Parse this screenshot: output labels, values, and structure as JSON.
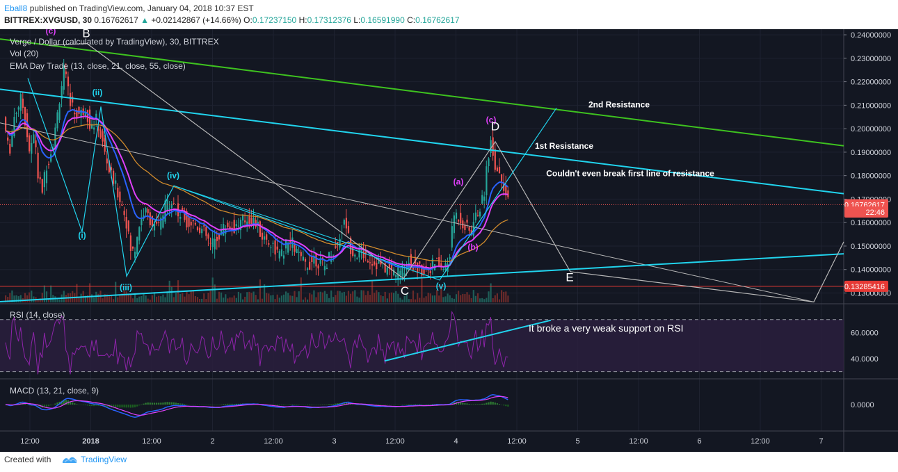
{
  "header": {
    "author": "Eball8",
    "published_text": "published on TradingView.com, January 04, 2018 10:37 EST",
    "symbol": "BITTREX:XVGUSD, 30",
    "last": "0.16762617",
    "change_arrow": "▲",
    "change": "+0.02142867 (+14.66%)",
    "o_label": "O:",
    "o_value": "0.17237150",
    "h_label": "H:",
    "h_value": "0.17312376",
    "l_label": "L:",
    "l_value": "0.16591990",
    "c_label": "C:",
    "c_value": "0.16762617"
  },
  "legend": {
    "title": "Verge / Dollar (calculated by TradingView), 30, BITTREX",
    "volume": "Vol (20)",
    "ema": "EMA Day Trade (13, close, 21, close, 55, close)",
    "rsi": "RSI (14, close)",
    "macd": "MACD (13, 21, close, 9)"
  },
  "footer": {
    "created_with": "Created with",
    "brand": "TradingView"
  },
  "colors": {
    "background": "#131722",
    "grid": "#1e2230",
    "up": "#26a69a",
    "down": "#ef5350",
    "ema13": "#2962ff",
    "ema21": "#e040fb",
    "ema55": "#d08a2c",
    "green_line": "#3ec21f",
    "cyan": "#21d4ee",
    "gray_line": "#b7b7b7",
    "rsi_line": "#8e24aa"
  },
  "chart_data": {
    "type": "candlestick",
    "title": "Verge / Dollar (calculated by TradingView), 30, BITTREX",
    "price_axis": [
      "0.24000000",
      "0.23000000",
      "0.22000000",
      "0.21000000",
      "0.20000000",
      "0.19000000",
      "0.18000000",
      "0.17000000",
      "0.16000000",
      "0.15000000",
      "0.14000000",
      "0.13000000"
    ],
    "price_range": [
      0.126,
      0.2415
    ],
    "rsi_axis": [
      "60.0000",
      "40.0000"
    ],
    "rsi_range": [
      25,
      80
    ],
    "rsi_bands": [
      70,
      30
    ],
    "macd_axis": [
      "0.0000"
    ],
    "time_axis": [
      "12:00",
      "2018",
      "12:00",
      "2",
      "12:00",
      "3",
      "12:00",
      "4",
      "12:00",
      "5",
      "12:00",
      "6",
      "12:00",
      "7"
    ],
    "price_labels": [
      {
        "text": "0.16762617",
        "value": 0.16762617,
        "color": "#ef5350"
      },
      {
        "text": "22:46",
        "value": 0.1645,
        "color": "#ef5350"
      },
      {
        "text": "0.13285416",
        "value": 0.13285416,
        "color": "#e53935"
      }
    ],
    "support_line": 0.13285416,
    "last_price": 0.16762617,
    "waypoints": [
      [
        0,
        0.196
      ],
      [
        8,
        0.205
      ],
      [
        16,
        0.189
      ],
      [
        23,
        0.205
      ],
      [
        28,
        0.209
      ],
      [
        34,
        0.213
      ],
      [
        40,
        0.202
      ],
      [
        46,
        0.189
      ],
      [
        53,
        0.199
      ],
      [
        58,
        0.178
      ],
      [
        64,
        0.174
      ],
      [
        70,
        0.185
      ],
      [
        76,
        0.19
      ],
      [
        82,
        0.198
      ],
      [
        88,
        0.212
      ],
      [
        95,
        0.225
      ],
      [
        102,
        0.214
      ],
      [
        110,
        0.207
      ],
      [
        118,
        0.206
      ],
      [
        126,
        0.209
      ],
      [
        134,
        0.2
      ],
      [
        142,
        0.204
      ],
      [
        150,
        0.194
      ],
      [
        160,
        0.182
      ],
      [
        168,
        0.176
      ],
      [
        176,
        0.17
      ],
      [
        184,
        0.162
      ],
      [
        190,
        0.149
      ],
      [
        196,
        0.147
      ],
      [
        202,
        0.158
      ],
      [
        210,
        0.165
      ],
      [
        218,
        0.162
      ],
      [
        226,
        0.157
      ],
      [
        234,
        0.16
      ],
      [
        242,
        0.168
      ],
      [
        250,
        0.17
      ],
      [
        258,
        0.164
      ],
      [
        266,
        0.163
      ],
      [
        274,
        0.16
      ],
      [
        282,
        0.16
      ],
      [
        290,
        0.158
      ],
      [
        298,
        0.155
      ],
      [
        306,
        0.15
      ],
      [
        314,
        0.153
      ],
      [
        322,
        0.157
      ],
      [
        330,
        0.159
      ],
      [
        340,
        0.158
      ],
      [
        350,
        0.16
      ],
      [
        360,
        0.162
      ],
      [
        370,
        0.16
      ],
      [
        380,
        0.154
      ],
      [
        390,
        0.152
      ],
      [
        398,
        0.149
      ],
      [
        406,
        0.145
      ],
      [
        414,
        0.15
      ],
      [
        422,
        0.152
      ],
      [
        430,
        0.147
      ],
      [
        438,
        0.143
      ],
      [
        446,
        0.142
      ],
      [
        454,
        0.145
      ],
      [
        462,
        0.143
      ],
      [
        470,
        0.141
      ],
      [
        478,
        0.147
      ],
      [
        486,
        0.149
      ],
      [
        494,
        0.157
      ],
      [
        500,
        0.161
      ],
      [
        506,
        0.15
      ],
      [
        514,
        0.147
      ],
      [
        522,
        0.147
      ],
      [
        530,
        0.146
      ],
      [
        540,
        0.143
      ],
      [
        550,
        0.142
      ],
      [
        560,
        0.14
      ],
      [
        570,
        0.139
      ],
      [
        580,
        0.139
      ],
      [
        590,
        0.144
      ],
      [
        600,
        0.141
      ],
      [
        610,
        0.14
      ],
      [
        620,
        0.141
      ],
      [
        630,
        0.143
      ],
      [
        640,
        0.14
      ],
      [
        648,
        0.143
      ],
      [
        656,
        0.164
      ],
      [
        664,
        0.162
      ],
      [
        672,
        0.158
      ],
      [
        680,
        0.156
      ],
      [
        686,
        0.162
      ],
      [
        692,
        0.166
      ],
      [
        698,
        0.17
      ],
      [
        704,
        0.188
      ],
      [
        710,
        0.195
      ],
      [
        716,
        0.182
      ],
      [
        722,
        0.182
      ],
      [
        726,
        0.178
      ],
      [
        731,
        0.17
      ],
      [
        733,
        0.168
      ]
    ],
    "overlays": {
      "green_trendline": {
        "x1": 0,
        "v1": 0.2382,
        "x2": 1213,
        "v2": 0.1927
      },
      "cyan_upper_trendline": {
        "x1": 0,
        "v1": 0.2168,
        "x2": 1213,
        "v2": 0.1723
      },
      "cyan_lower_trendline": {
        "x1": 0,
        "v1": 0.1263,
        "x2": 1213,
        "v2": 0.1467
      },
      "gray_descending_line": {
        "x1": 0,
        "v1": 0.2025,
        "x2": 1170,
        "v2": 0.1262
      },
      "abcde_pattern": [
        [
          70,
          0.2355
        ],
        [
          125,
          0.2363
        ],
        [
          580,
          0.1362
        ],
        [
          712,
          0.1945
        ],
        [
          820,
          0.1391
        ],
        [
          1170,
          0.1262
        ],
        [
          1213,
          0.1518
        ]
      ],
      "cyan_wave": [
        [
          40,
          0.2215
        ],
        [
          118,
          0.1561
        ],
        [
          145,
          0.2094
        ],
        [
          182,
          0.1371
        ],
        [
          250,
          0.1757
        ],
        [
          632,
          0.1355
        ],
        [
          800,
          0.2088
        ]
      ],
      "wave_iv_channel": [
        [
          250,
          0.1757
        ],
        [
          505,
          0.1507
        ]
      ]
    },
    "annotations": [
      {
        "text": "(c)",
        "color": "#e040fb",
        "x": 73,
        "v": 0.2404
      },
      {
        "text": "B",
        "color": "#ffffff",
        "x": 124,
        "v": 0.239
      },
      {
        "text": "(ii)",
        "color": "#21d4ee",
        "x": 140,
        "v": 0.2142
      },
      {
        "text": "(i)",
        "color": "#21d4ee",
        "x": 118,
        "v": 0.1534
      },
      {
        "text": "(iv)",
        "color": "#21d4ee",
        "x": 249,
        "v": 0.1788
      },
      {
        "text": "(iii)",
        "color": "#21d4ee",
        "x": 181,
        "v": 0.1312
      },
      {
        "text": "C",
        "color": "#ffffff",
        "x": 582,
        "v": 0.1292
      },
      {
        "text": "(v)",
        "color": "#21d4ee",
        "x": 634,
        "v": 0.1318
      },
      {
        "text": "(a)",
        "color": "#e040fb",
        "x": 659,
        "v": 0.1762
      },
      {
        "text": "(b)",
        "color": "#e040fb",
        "x": 680,
        "v": 0.1483
      },
      {
        "text": "(c)",
        "color": "#e040fb",
        "x": 706,
        "v": 0.2026
      },
      {
        "text": "D",
        "color": "#ffffff",
        "x": 712,
        "v": 0.1993
      },
      {
        "text": "E",
        "color": "#ffffff",
        "x": 819,
        "v": 0.1351
      },
      {
        "text": "2nd Resistance",
        "color": "#ffffff",
        "x": 890,
        "v": 0.2091
      },
      {
        "text": "1st Resistance",
        "color": "#ffffff",
        "x": 811,
        "v": 0.1915
      },
      {
        "text": "Couldn't even break first line of resistance",
        "color": "#ffffff",
        "x": 906,
        "v": 0.1797
      }
    ],
    "rsi_annotation": {
      "text": "It broke a very weak support on RSI",
      "color": "#ffffff"
    },
    "rsi_trendline": {
      "x1": 553,
      "r1": 38.3,
      "x2": 792,
      "r2": 69.5
    }
  }
}
